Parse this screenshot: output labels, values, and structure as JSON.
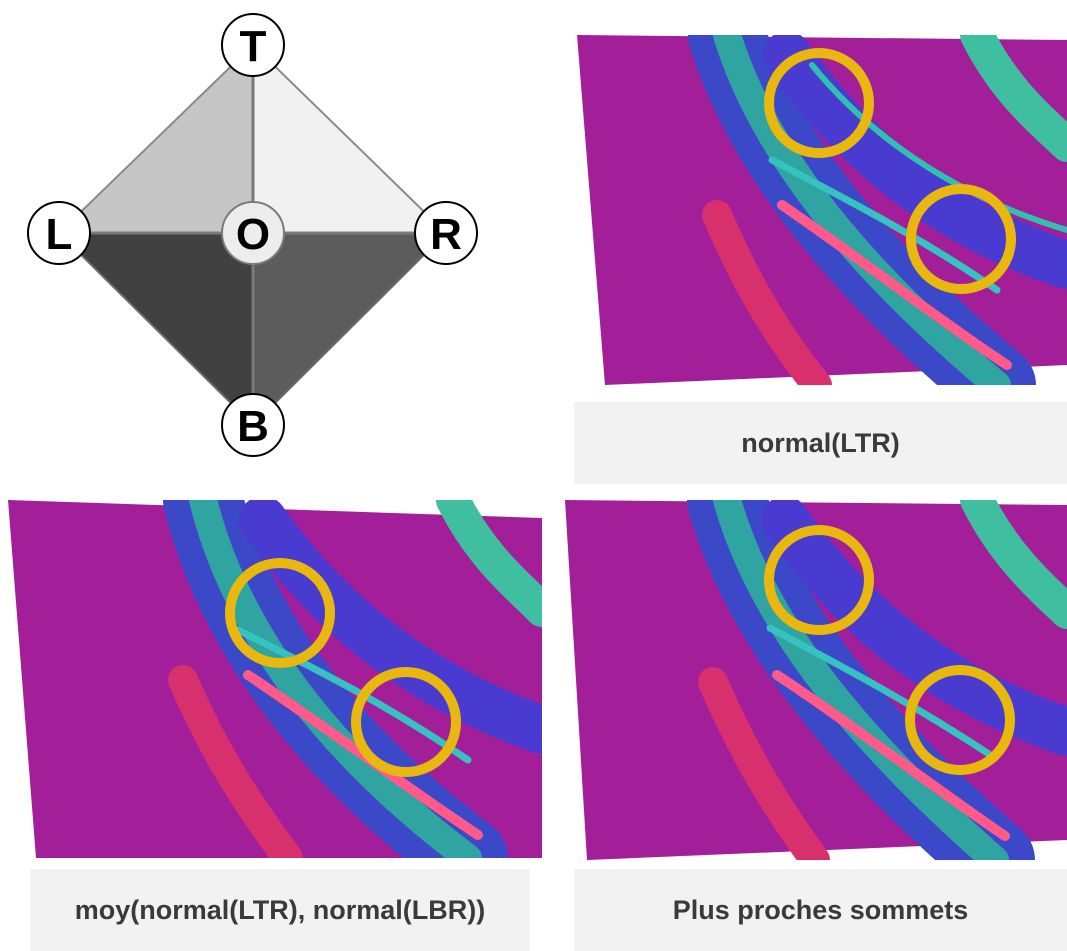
{
  "diagram": {
    "vertices": {
      "top": "T",
      "left": "L",
      "origin": "O",
      "right": "R",
      "bottom": "B"
    }
  },
  "captions": {
    "top_right": "normal(LTR)",
    "bottom_left": "moy(normal(LTR), normal(LBR))",
    "bottom_right": "Plus proches sommets"
  },
  "colors": {
    "highlight_ring": "#e8b80e",
    "normal_map_magenta": "#a31f9a",
    "normal_map_blue": "#3b49c9",
    "normal_map_teal": "#2fa4a0",
    "caption_background": "#f2f2f2"
  }
}
